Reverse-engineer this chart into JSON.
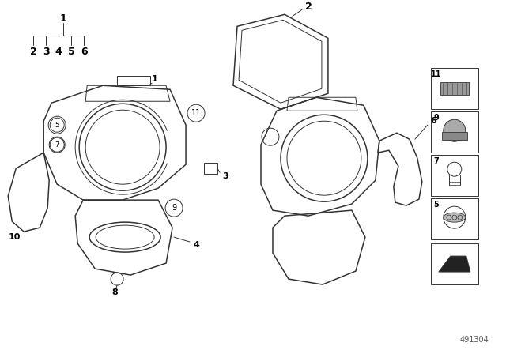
{
  "bg_color": "#ffffff",
  "line_color": "#333333",
  "part_number": "491304",
  "fig_w": 6.4,
  "fig_h": 4.48,
  "dpi": 100
}
